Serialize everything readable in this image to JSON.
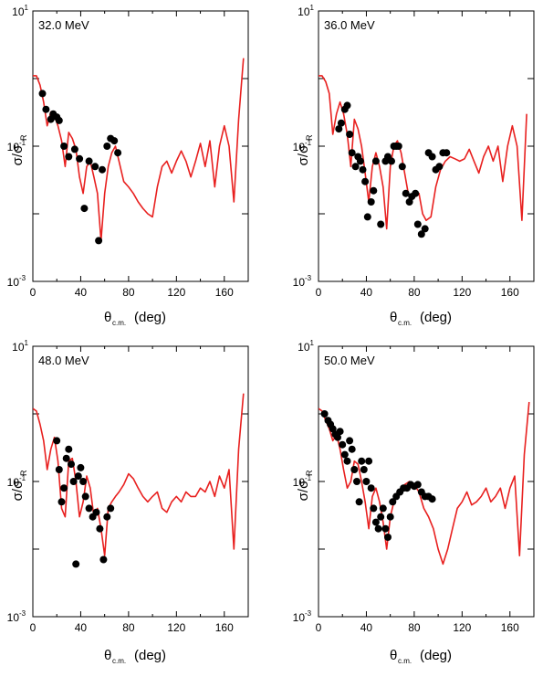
{
  "figure": {
    "tick_labels": {
      "y_top": "10",
      "y_top_exp": "1",
      "y_mid": "10",
      "y_mid_exp": "-1",
      "y_bot": "10",
      "y_bot_exp": "-3"
    },
    "x_tick_labels": [
      "0",
      "40",
      "80",
      "120",
      "160"
    ],
    "ylabel_main": "σ/σ",
    "ylabel_sub": "R",
    "xlabel_theta": "θ",
    "xlabel_sub": "c.m.",
    "xlabel_unit": "(deg)"
  },
  "colors": {
    "curve": "#e8201f",
    "points": "#000000",
    "axes": "#000000"
  },
  "chart_data": [
    {
      "type": "scatter",
      "title": "32.0 MeV",
      "xlabel": "θc.m.(deg)",
      "ylabel": "σ/σR",
      "xlim": [
        0,
        180
      ],
      "ylim": [
        0.001,
        10
      ],
      "yscale": "log",
      "series": [
        {
          "kind": "curve",
          "x": [
            0,
            3,
            6,
            9,
            12,
            15,
            18,
            21,
            24,
            27,
            30,
            33,
            36,
            39,
            42,
            45,
            48,
            51,
            54,
            57,
            60,
            63,
            66,
            69,
            72,
            76,
            80,
            84,
            88,
            92,
            96,
            100,
            104,
            108,
            112,
            116,
            120,
            124,
            128,
            132,
            136,
            140,
            144,
            148,
            152,
            156,
            160,
            164,
            168,
            172,
            176
          ],
          "y": [
            1.1,
            1.1,
            0.8,
            0.45,
            0.2,
            0.32,
            0.28,
            0.2,
            0.12,
            0.05,
            0.16,
            0.13,
            0.09,
            0.035,
            0.02,
            0.05,
            0.06,
            0.035,
            0.02,
            0.004,
            0.02,
            0.05,
            0.08,
            0.1,
            0.06,
            0.03,
            0.025,
            0.02,
            0.015,
            0.012,
            0.01,
            0.009,
            0.025,
            0.05,
            0.06,
            0.04,
            0.06,
            0.085,
            0.06,
            0.035,
            0.06,
            0.11,
            0.05,
            0.12,
            0.025,
            0.1,
            0.2,
            0.1,
            0.015,
            0.25,
            2.0
          ]
        },
        {
          "kind": "points",
          "x": [
            8,
            11,
            15,
            17,
            20,
            22,
            26,
            30,
            35,
            39,
            43,
            47,
            52,
            55,
            58,
            62,
            65,
            68,
            71
          ],
          "y": [
            0.6,
            0.35,
            0.25,
            0.3,
            0.27,
            0.24,
            0.1,
            0.07,
            0.09,
            0.065,
            0.012,
            0.06,
            0.05,
            0.004,
            0.045,
            0.1,
            0.13,
            0.12,
            0.08
          ]
        }
      ]
    },
    {
      "type": "scatter",
      "title": "36.0 MeV",
      "xlabel": "θc.m. (deg)",
      "ylabel": "σ/σR",
      "xlim": [
        0,
        180
      ],
      "ylim": [
        0.001,
        10
      ],
      "yscale": "log",
      "series": [
        {
          "kind": "curve",
          "x": [
            0,
            3,
            6,
            9,
            12,
            15,
            18,
            21,
            24,
            27,
            30,
            33,
            36,
            39,
            42,
            45,
            48,
            51,
            54,
            57,
            60,
            63,
            66,
            69,
            72,
            75,
            78,
            81,
            84,
            87,
            90,
            94,
            98,
            102,
            106,
            110,
            114,
            118,
            122,
            126,
            130,
            134,
            138,
            142,
            146,
            150,
            154,
            158,
            162,
            166,
            170,
            174
          ],
          "y": [
            1.1,
            1.1,
            0.9,
            0.6,
            0.15,
            0.3,
            0.45,
            0.3,
            0.15,
            0.05,
            0.25,
            0.18,
            0.1,
            0.04,
            0.015,
            0.05,
            0.08,
            0.05,
            0.025,
            0.006,
            0.05,
            0.1,
            0.12,
            0.08,
            0.04,
            0.02,
            0.018,
            0.02,
            0.02,
            0.01,
            0.008,
            0.009,
            0.025,
            0.045,
            0.06,
            0.07,
            0.065,
            0.06,
            0.065,
            0.09,
            0.06,
            0.04,
            0.07,
            0.1,
            0.06,
            0.1,
            0.03,
            0.1,
            0.2,
            0.1,
            0.008,
            0.3
          ]
        },
        {
          "kind": "points",
          "x": [
            17,
            19,
            22,
            24,
            26,
            28,
            31,
            33,
            35,
            37,
            39,
            41,
            44,
            46,
            48,
            52,
            56,
            58,
            61,
            63,
            65,
            67,
            70,
            73,
            76,
            78,
            81,
            83,
            86,
            89,
            92,
            95,
            98,
            101,
            104,
            107
          ],
          "y": [
            0.18,
            0.22,
            0.35,
            0.4,
            0.15,
            0.08,
            0.05,
            0.07,
            0.06,
            0.045,
            0.03,
            0.009,
            0.015,
            0.022,
            0.06,
            0.007,
            0.06,
            0.07,
            0.06,
            0.1,
            0.1,
            0.1,
            0.05,
            0.02,
            0.015,
            0.018,
            0.02,
            0.007,
            0.005,
            0.006,
            0.08,
            0.07,
            0.045,
            0.05,
            0.08,
            0.08
          ]
        }
      ]
    },
    {
      "type": "scatter",
      "title": "48.0 MeV",
      "xlabel": "θc.m.(deg)",
      "ylabel": "σ/σR",
      "xlim": [
        0,
        180
      ],
      "ylim": [
        0.001,
        10
      ],
      "yscale": "log",
      "series": [
        {
          "kind": "curve",
          "x": [
            0,
            3,
            6,
            9,
            12,
            15,
            18,
            21,
            24,
            27,
            30,
            33,
            36,
            39,
            42,
            45,
            48,
            51,
            54,
            57,
            60,
            63,
            66,
            69,
            72,
            76,
            80,
            84,
            88,
            92,
            96,
            100,
            104,
            108,
            112,
            116,
            120,
            124,
            128,
            132,
            136,
            140,
            144,
            148,
            152,
            156,
            160,
            164,
            168,
            172,
            176
          ],
          "y": [
            1.2,
            1.1,
            0.7,
            0.4,
            0.15,
            0.3,
            0.45,
            0.2,
            0.04,
            0.03,
            0.2,
            0.22,
            0.1,
            0.03,
            0.05,
            0.12,
            0.08,
            0.03,
            0.04,
            0.02,
            0.008,
            0.04,
            0.05,
            0.06,
            0.07,
            0.09,
            0.13,
            0.11,
            0.08,
            0.06,
            0.05,
            0.06,
            0.07,
            0.04,
            0.035,
            0.05,
            0.06,
            0.05,
            0.07,
            0.06,
            0.06,
            0.08,
            0.07,
            0.1,
            0.06,
            0.12,
            0.08,
            0.15,
            0.01,
            0.3,
            2.0
          ]
        },
        {
          "kind": "points",
          "x": [
            20,
            22,
            24,
            26,
            28,
            30,
            32,
            34,
            36,
            38,
            40,
            42,
            44,
            47,
            50,
            53,
            56,
            59,
            62,
            65
          ],
          "y": [
            0.4,
            0.15,
            0.05,
            0.08,
            0.22,
            0.3,
            0.18,
            0.1,
            0.006,
            0.12,
            0.16,
            0.1,
            0.06,
            0.04,
            0.03,
            0.035,
            0.02,
            0.007,
            0.03,
            0.04
          ]
        }
      ]
    },
    {
      "type": "scatter",
      "title": "50.0 MeV",
      "xlabel": "θc.m.(deg)",
      "ylabel": "σ/σR",
      "xlim": [
        0,
        180
      ],
      "ylim": [
        0.001,
        10
      ],
      "yscale": "log",
      "series": [
        {
          "kind": "curve",
          "x": [
            0,
            3,
            6,
            9,
            12,
            15,
            18,
            21,
            24,
            27,
            30,
            33,
            36,
            39,
            42,
            45,
            48,
            51,
            54,
            57,
            60,
            63,
            66,
            69,
            72,
            76,
            80,
            84,
            88,
            92,
            96,
            100,
            104,
            108,
            112,
            116,
            120,
            124,
            128,
            132,
            136,
            140,
            144,
            148,
            152,
            156,
            160,
            164,
            168,
            172,
            176
          ],
          "y": [
            1.2,
            1.1,
            0.8,
            0.6,
            0.4,
            0.5,
            0.3,
            0.15,
            0.08,
            0.1,
            0.2,
            0.18,
            0.1,
            0.05,
            0.02,
            0.06,
            0.08,
            0.05,
            0.025,
            0.01,
            0.03,
            0.05,
            0.07,
            0.08,
            0.09,
            0.1,
            0.09,
            0.07,
            0.04,
            0.03,
            0.02,
            0.01,
            0.006,
            0.01,
            0.02,
            0.04,
            0.05,
            0.07,
            0.045,
            0.05,
            0.06,
            0.08,
            0.05,
            0.06,
            0.08,
            0.04,
            0.08,
            0.12,
            0.008,
            0.25,
            1.5
          ]
        },
        {
          "kind": "points",
          "x": [
            5,
            8,
            10,
            12,
            14,
            16,
            18,
            20,
            22,
            24,
            26,
            28,
            30,
            32,
            34,
            36,
            38,
            40,
            42,
            44,
            46,
            48,
            50,
            52,
            54,
            56,
            58,
            60,
            62,
            65,
            68,
            71,
            74,
            77,
            80,
            83,
            86,
            89,
            92,
            95
          ],
          "y": [
            1.0,
            0.8,
            0.7,
            0.6,
            0.5,
            0.45,
            0.55,
            0.35,
            0.25,
            0.2,
            0.4,
            0.3,
            0.15,
            0.1,
            0.05,
            0.2,
            0.15,
            0.1,
            0.2,
            0.08,
            0.04,
            0.025,
            0.02,
            0.03,
            0.04,
            0.02,
            0.015,
            0.03,
            0.05,
            0.06,
            0.07,
            0.08,
            0.08,
            0.09,
            0.085,
            0.09,
            0.07,
            0.06,
            0.06,
            0.055
          ]
        }
      ]
    }
  ]
}
